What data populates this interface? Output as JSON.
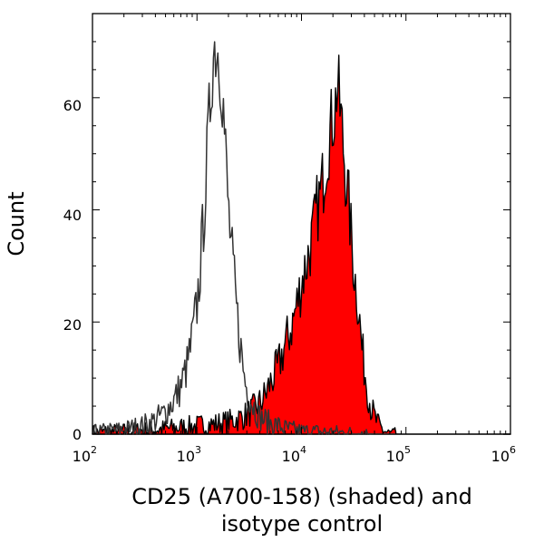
{
  "chart_data": {
    "type": "area",
    "title": "",
    "xlabel_lines": [
      "CD25 (A700-158) (shaded) and",
      "isotype control"
    ],
    "ylabel": "Count",
    "x_scale": "log",
    "xlim": [
      100,
      1000000
    ],
    "ylim": [
      0,
      75
    ],
    "x_ticks": [
      {
        "base": "10",
        "exp": "2",
        "value": 100
      },
      {
        "base": "10",
        "exp": "3",
        "value": 1000
      },
      {
        "base": "10",
        "exp": "4",
        "value": 10000
      },
      {
        "base": "10",
        "exp": "5",
        "value": 100000
      },
      {
        "base": "10",
        "exp": "6",
        "value": 1000000
      }
    ],
    "y_ticks": [
      0,
      20,
      40,
      60
    ],
    "series": [
      {
        "name": "CD25 (A700-158)",
        "style": "shaded",
        "fill": "#ff0000",
        "stroke": "#000000",
        "x": [
          100,
          200,
          400,
          700,
          1000,
          1500,
          2000,
          2500,
          3000,
          3500,
          4000,
          4500,
          5000,
          6000,
          7000,
          8000,
          9000,
          10000,
          11000,
          12000,
          13000,
          14000,
          15000,
          16000,
          17000,
          18000,
          19000,
          20000,
          21000,
          22000,
          23000,
          24000,
          25000,
          26000,
          28000,
          30000,
          32000,
          35000,
          38000,
          42000,
          46000,
          50000,
          55000,
          60000,
          65000,
          70000,
          80000,
          100000
        ],
        "y": [
          0.3,
          0.5,
          0.8,
          1.2,
          1.5,
          1.8,
          2.2,
          2.8,
          3.5,
          4.5,
          5.5,
          7,
          9,
          12,
          16,
          19,
          23,
          27,
          30,
          33,
          36,
          40,
          42,
          45,
          49,
          52,
          54,
          57,
          58,
          63,
          59,
          56,
          52,
          48,
          42,
          35,
          29,
          23,
          15,
          9,
          5,
          3,
          1.5,
          0.8,
          0.3,
          0.1,
          0.05,
          0
        ]
      },
      {
        "name": "isotype control",
        "style": "outline",
        "stroke": "#333333",
        "x": [
          100,
          200,
          300,
          400,
          500,
          600,
          700,
          800,
          900,
          1000,
          1100,
          1200,
          1300,
          1400,
          1500,
          1600,
          1700,
          1800,
          1900,
          2000,
          2200,
          2400,
          2600,
          2800,
          3000,
          3300,
          3600,
          4000,
          4500,
          5000,
          6000,
          7000,
          8000,
          10000,
          15000,
          20000,
          30000,
          50000
        ],
        "y": [
          0.3,
          0.8,
          1.5,
          2.5,
          4,
          6,
          8.5,
          12,
          17,
          23,
          32,
          43,
          55,
          66,
          70,
          68,
          65,
          57,
          48,
          40,
          30,
          22,
          16,
          11,
          8,
          6,
          4.5,
          3,
          2.5,
          2,
          1.5,
          1,
          0.8,
          0.5,
          0.4,
          0.3,
          0.2,
          0
        ]
      }
    ]
  }
}
